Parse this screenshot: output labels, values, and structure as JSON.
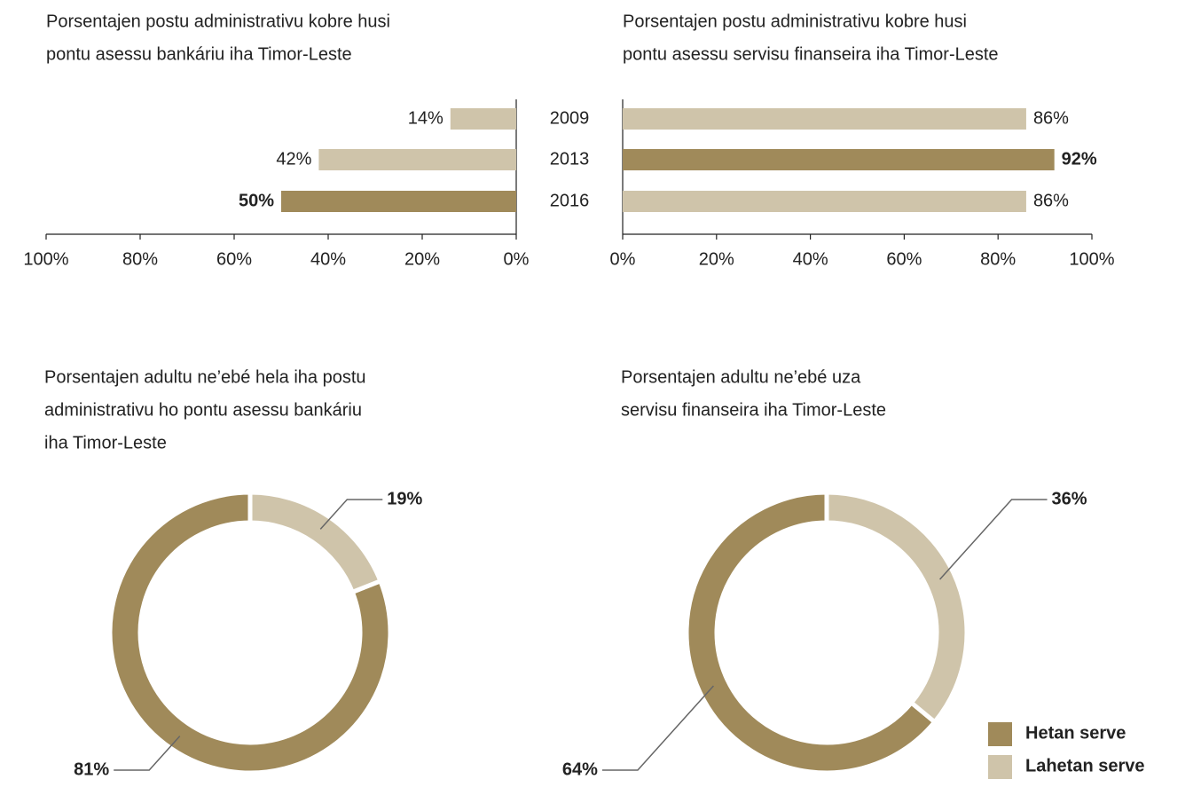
{
  "chart_data": [
    {
      "type": "hbar",
      "title": [
        "Porsentajen postu administrativu kobre husi",
        "pontu asessu bankáriu iha Timor-Leste"
      ],
      "categories": [
        "2009",
        "2013",
        "2016"
      ],
      "values": [
        14,
        42,
        50
      ],
      "value_labels": [
        "14%",
        "42%",
        "50%"
      ],
      "color": "#cfc4aa",
      "highlight_color": "#a08a5a",
      "highlight": 2,
      "xlim": [
        0,
        100
      ],
      "reversed": true,
      "xticks": [
        {
          "value": 0,
          "label": "0%"
        },
        {
          "value": 20,
          "label": "20%"
        },
        {
          "value": 40,
          "label": "40%"
        },
        {
          "value": 60,
          "label": "60%"
        },
        {
          "value": 80,
          "label": "80%"
        },
        {
          "value": 100,
          "label": "100%"
        }
      ]
    },
    {
      "type": "hbar",
      "title": [
        "Porsentajen postu administrativu kobre husi",
        "pontu asessu servisu finanseira iha Timor-Leste"
      ],
      "values": [
        86,
        92,
        86
      ],
      "value_labels": [
        "86%",
        "92%",
        "86%"
      ],
      "color": "#cfc4aa",
      "highlight_color": "#a08a5a",
      "highlight": 1,
      "xlim": [
        0,
        100
      ],
      "reversed": false,
      "xticks": [
        {
          "value": 0,
          "label": "0%"
        },
        {
          "value": 20,
          "label": "20%"
        },
        {
          "value": 40,
          "label": "40%"
        },
        {
          "value": 60,
          "label": "60%"
        },
        {
          "value": 80,
          "label": "80%"
        },
        {
          "value": 100,
          "label": "100%"
        }
      ]
    },
    {
      "type": "donut",
      "title": [
        "Porsentajen adultu ne’ebé hela iha postu",
        "administrativu ho pontu asessu bankáriu",
        "iha Timor-Leste"
      ],
      "values": [
        81,
        19
      ],
      "value_labels": [
        "81%",
        "19%"
      ],
      "colors": [
        "#a08a5a",
        "#cfc4aa"
      ],
      "highlight": 0,
      "legend": false
    },
    {
      "type": "donut",
      "title": [
        "Porsentajen adultu ne’ebé uza",
        "servisu finanseira  iha Timor-Leste"
      ],
      "categories": [
        "Hetan serve",
        "Lahetan serve"
      ],
      "values": [
        64,
        36
      ],
      "value_labels": [
        "64%",
        "36%"
      ],
      "colors": [
        "#a08a5a",
        "#cfc4aa"
      ],
      "highlight": 0,
      "legend": "lower right"
    }
  ]
}
